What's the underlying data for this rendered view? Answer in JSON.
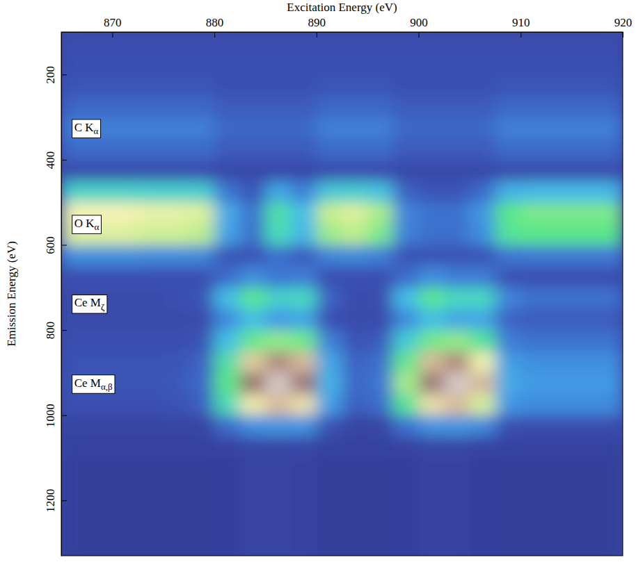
{
  "chart_data": {
    "type": "heatmap",
    "x_label": "Excitation Energy (eV)",
    "y_label": "Emission Energy (eV)",
    "xlim": [
      865,
      920
    ],
    "xticks": [
      870,
      880,
      890,
      900,
      910,
      920
    ],
    "ylim": [
      100,
      1330
    ],
    "yticks": [
      200,
      400,
      600,
      800,
      1000,
      1200
    ],
    "zlim": [
      0,
      10
    ],
    "x_bins": [
      865,
      867.5,
      870,
      872.5,
      875,
      877.5,
      880,
      882.5,
      885,
      887.5,
      890,
      892.5,
      895,
      897.5,
      900,
      902.5,
      905,
      907.5,
      910,
      912.5,
      915,
      917.5,
      920
    ],
    "y_bins": [
      100,
      150,
      200,
      250,
      300,
      350,
      400,
      450,
      500,
      550,
      600,
      650,
      700,
      750,
      800,
      850,
      900,
      950,
      1000,
      1050,
      1100,
      1150,
      1200,
      1250,
      1300,
      1350
    ],
    "z": [
      [
        1.3,
        1.3,
        1.3,
        1.3,
        1.3,
        1.3,
        1.3,
        1.3,
        1.3,
        1.3,
        1.3,
        1.3,
        1.3,
        1.3,
        1.3,
        1.3,
        1.3,
        1.3,
        1.3,
        1.3,
        1.3,
        1.3
      ],
      [
        1.4,
        1.4,
        1.4,
        1.4,
        1.4,
        1.4,
        1.4,
        1.4,
        1.4,
        1.4,
        1.4,
        1.4,
        1.4,
        1.4,
        1.4,
        1.4,
        1.4,
        1.4,
        1.4,
        1.4,
        1.4,
        1.4
      ],
      [
        1.6,
        1.6,
        1.6,
        1.6,
        1.6,
        1.6,
        1.4,
        1.4,
        1.4,
        1.4,
        1.6,
        1.6,
        1.6,
        1.4,
        1.4,
        1.4,
        1.4,
        1.6,
        1.6,
        1.6,
        1.6,
        1.6
      ],
      [
        2.2,
        2.2,
        2.2,
        2.2,
        2.2,
        2.2,
        1.8,
        1.8,
        1.8,
        1.8,
        2.2,
        2.2,
        2.2,
        1.8,
        1.8,
        1.8,
        1.8,
        2.2,
        2.2,
        2.2,
        2.2,
        2.2
      ],
      [
        2.9,
        2.9,
        2.9,
        2.9,
        2.9,
        2.9,
        2.2,
        2.2,
        2.2,
        2.2,
        2.9,
        2.9,
        2.9,
        2.2,
        2.2,
        2.2,
        2.2,
        2.9,
        2.9,
        2.9,
        2.9,
        2.9
      ],
      [
        2.3,
        2.3,
        2.3,
        2.3,
        2.3,
        2.3,
        1.8,
        1.8,
        1.8,
        1.8,
        2.3,
        2.3,
        2.3,
        1.8,
        1.8,
        1.8,
        1.8,
        2.3,
        2.3,
        2.3,
        2.3,
        2.3
      ],
      [
        1.3,
        1.3,
        1.3,
        1.3,
        1.3,
        1.3,
        1.1,
        1.1,
        1.1,
        1.1,
        1.3,
        1.3,
        1.3,
        1.1,
        1.1,
        1.1,
        1.1,
        1.3,
        1.3,
        1.3,
        1.3,
        1.3
      ],
      [
        5.3,
        5.3,
        5.3,
        5.2,
        5.2,
        5.1,
        2.6,
        1.6,
        3.9,
        2.9,
        4.9,
        5.1,
        4.7,
        2,
        1.6,
        1.6,
        2.3,
        4.2,
        4.4,
        4.4,
        4.4,
        4.4
      ],
      [
        8.2,
        8.2,
        8.2,
        8,
        8,
        7.8,
        4,
        2.5,
        6,
        4.5,
        7.5,
        7.8,
        7.2,
        3,
        2.5,
        2.5,
        3.5,
        6.5,
        6.8,
        6.8,
        6.8,
        6.8
      ],
      [
        7.8,
        7.8,
        7.8,
        7.6,
        7.6,
        7.4,
        3.8,
        2.4,
        5.7,
        4.3,
        7.1,
        7.4,
        6.8,
        2.9,
        2.4,
        2.4,
        3.3,
        6.2,
        6.5,
        6.5,
        6.5,
        6.5
      ],
      [
        3.3,
        3.3,
        3.3,
        3.2,
        3.2,
        3.1,
        1.6,
        1.5,
        2.4,
        1.8,
        3,
        3.1,
        2.9,
        1.5,
        1.5,
        1.5,
        1.5,
        2.6,
        2.7,
        2.7,
        2.7,
        2.7
      ],
      [
        1.4,
        1.4,
        1.4,
        1.4,
        1.4,
        1.4,
        2.3,
        3.3,
        2.6,
        2.8,
        1.4,
        1.4,
        1.4,
        2.3,
        3.3,
        2.8,
        2.8,
        1.5,
        1.4,
        1.4,
        1.4,
        1.4
      ],
      [
        1.2,
        1.2,
        1.2,
        1.2,
        1.3,
        1.6,
        4.5,
        6.5,
        5.2,
        5.5,
        2,
        1.2,
        1.3,
        4.5,
        6.5,
        5.5,
        5.5,
        3,
        2.5,
        2.5,
        2.5,
        2.5
      ],
      [
        1.2,
        1.2,
        1.2,
        1.2,
        1.2,
        1.2,
        3.2,
        4.6,
        3.6,
        3.9,
        1.4,
        1.2,
        1.2,
        3.2,
        4.6,
        3.9,
        3.9,
        2.1,
        1.8,
        1.8,
        1.8,
        1.8
      ],
      [
        1.3,
        1.3,
        1.3,
        1.3,
        1.3,
        1.5,
        4.6,
        6.6,
        7,
        6.7,
        2.9,
        1.5,
        1.8,
        5,
        6.7,
        7,
        6.2,
        2.8,
        2.5,
        2.5,
        2.5,
        2.5
      ],
      [
        1.5,
        1.5,
        1.5,
        1.5,
        1.6,
        2,
        6,
        8.6,
        9.2,
        8.8,
        3.9,
        2,
        2.4,
        6.6,
        8.8,
        9.2,
        8.1,
        3.7,
        3.3,
        3.3,
        3.3,
        3.3
      ],
      [
        1.6,
        1.6,
        1.6,
        1.6,
        1.7,
        2.2,
        6.5,
        9.4,
        10,
        9.6,
        4.2,
        2.2,
        2.6,
        7.2,
        9.6,
        10,
        8.8,
        4,
        3.6,
        3.6,
        3.6,
        3.6
      ],
      [
        1.4,
        1.4,
        1.4,
        1.4,
        1.5,
        1.9,
        5.7,
        8.3,
        8.8,
        8.4,
        3.7,
        1.9,
        2.3,
        6.3,
        8.4,
        8.8,
        7.7,
        3.5,
        3.2,
        3.2,
        3.2,
        3.2
      ],
      [
        0.8,
        0.8,
        0.8,
        0.8,
        0.8,
        0.8,
        2.3,
        3.3,
        3.5,
        3.4,
        1.5,
        0.8,
        0.9,
        2.5,
        3.4,
        3.5,
        3.1,
        1.4,
        1.3,
        1.3,
        1.3,
        1.3
      ],
      [
        0.6,
        0.6,
        0.6,
        0.6,
        0.6,
        0.6,
        0.7,
        1,
        1,
        1,
        0.6,
        0.6,
        0.6,
        0.7,
        0.9,
        0.9,
        0.7,
        0.6,
        0.6,
        0.6,
        0.6,
        0.6
      ],
      [
        0.4,
        0.4,
        0.4,
        0.4,
        0.4,
        0.4,
        0.5,
        0.8,
        0.8,
        0.7,
        0.4,
        0.4,
        0.4,
        0.5,
        0.7,
        0.7,
        0.5,
        0.4,
        0.4,
        0.4,
        0.4,
        0.4
      ],
      [
        0.4,
        0.4,
        0.4,
        0.4,
        0.4,
        0.4,
        0.5,
        0.8,
        0.8,
        0.7,
        0.4,
        0.4,
        0.4,
        0.5,
        0.7,
        0.7,
        0.5,
        0.4,
        0.4,
        0.4,
        0.4,
        0.4
      ],
      [
        0.4,
        0.4,
        0.4,
        0.4,
        0.4,
        0.4,
        0.5,
        0.8,
        0.8,
        0.7,
        0.4,
        0.4,
        0.4,
        0.5,
        0.7,
        0.7,
        0.5,
        0.4,
        0.4,
        0.4,
        0.4,
        0.4
      ],
      [
        0.4,
        0.4,
        0.4,
        0.4,
        0.4,
        0.4,
        0.5,
        0.8,
        0.8,
        0.7,
        0.4,
        0.4,
        0.4,
        0.5,
        0.7,
        0.7,
        0.5,
        0.4,
        0.4,
        0.4,
        0.4,
        0.4
      ],
      [
        0.4,
        0.4,
        0.4,
        0.4,
        0.4,
        0.4,
        0.5,
        0.8,
        0.8,
        0.7,
        0.4,
        0.4,
        0.4,
        0.5,
        0.7,
        0.7,
        0.5,
        0.4,
        0.4,
        0.4,
        0.4,
        0.4
      ]
    ],
    "annotations": [
      {
        "text": "C Kα",
        "x": 866,
        "y": 325
      },
      {
        "text": "O Kα",
        "x": 866,
        "y": 550
      },
      {
        "text": "Ce Mζ",
        "x": 866,
        "y": 737
      },
      {
        "text": "Ce Mα,β",
        "x": 866,
        "y": 925
      }
    ]
  }
}
